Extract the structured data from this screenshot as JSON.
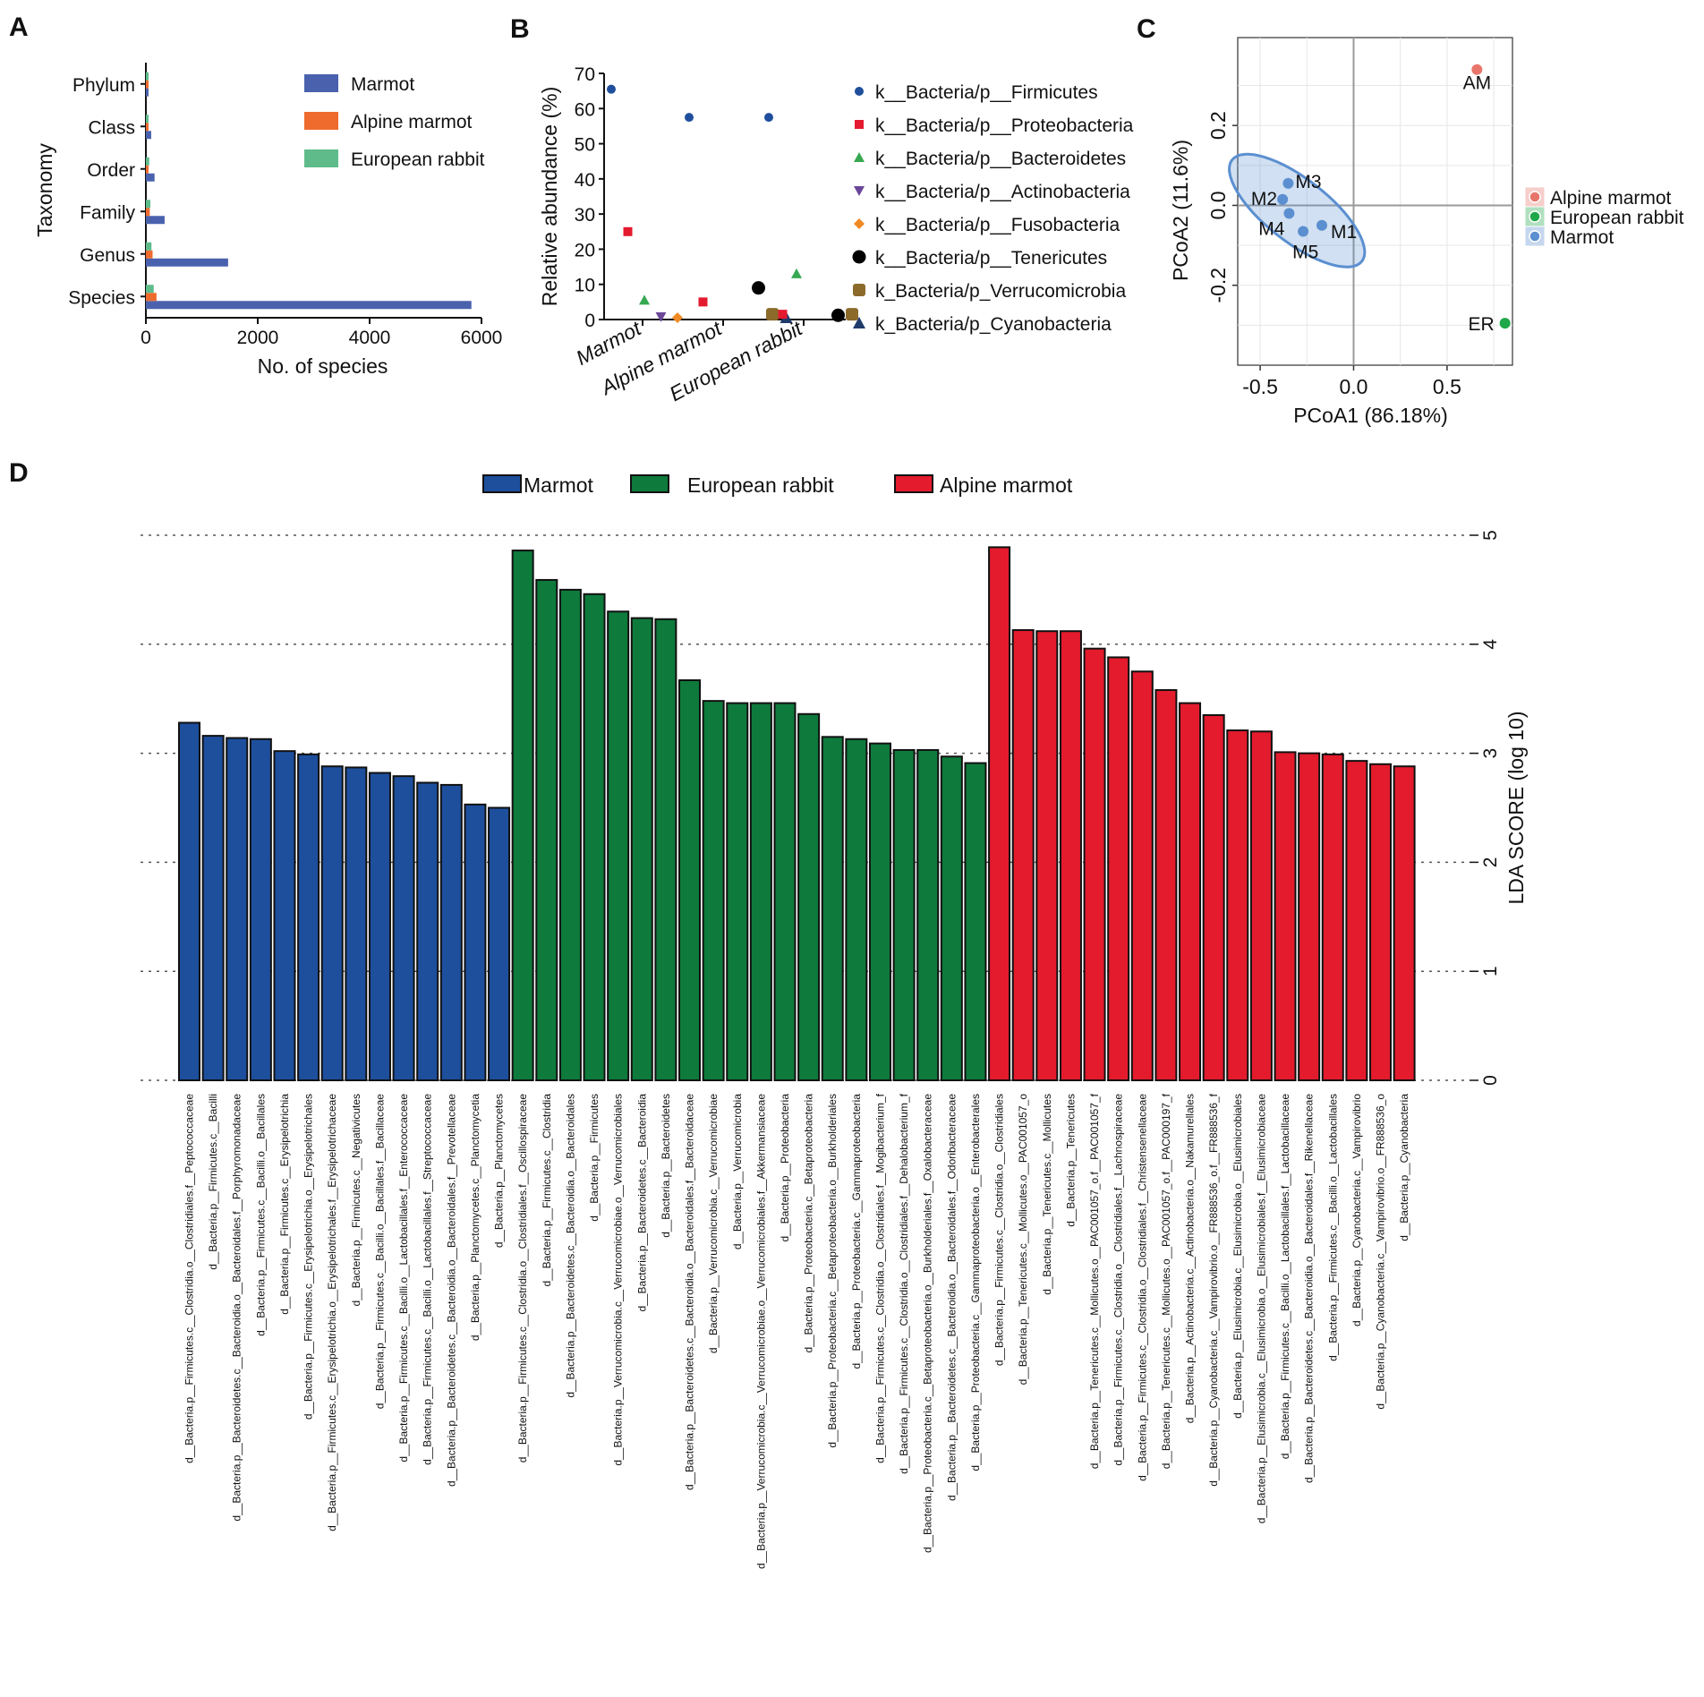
{
  "panel_labels": [
    "A",
    "B",
    "C",
    "D"
  ],
  "chart_data": [
    {
      "panel": "A",
      "type": "bar",
      "orientation": "horizontal",
      "categories": [
        "Phylum",
        "Class",
        "Order",
        "Family",
        "Genus",
        "Species"
      ],
      "series": [
        {
          "name": "Marmot",
          "color": "#4a62ae",
          "values": [
            28,
            95,
            155,
            335,
            1470,
            5820
          ]
        },
        {
          "name": "Alpine marmot",
          "color": "#ee6b2d",
          "values": [
            12,
            25,
            40,
            70,
            120,
            190
          ]
        },
        {
          "name": "European rabbit",
          "color": "#5fbb8a",
          "values": [
            15,
            40,
            60,
            80,
            100,
            140
          ]
        }
      ],
      "xlabel": "No. of species",
      "ylabel": "Taxonomy",
      "xlim": [
        0,
        6000
      ],
      "xticks": [
        "0",
        "2000",
        "4000",
        "6000"
      ],
      "legend": "top-right"
    },
    {
      "panel": "B",
      "type": "scatter",
      "groups": [
        "Marmot",
        "Alpine marmot",
        "European rabbit"
      ],
      "ylabel": "Relative abundance (%)",
      "ylim": [
        0,
        70
      ],
      "yticks": [
        "0",
        "10",
        "20",
        "30",
        "40",
        "50",
        "60",
        "70"
      ],
      "series": [
        {
          "name": "k__Bacteria/p__Firmicutes",
          "marker": "circle-small",
          "color": "#1f4f9c",
          "values": [
            65.5,
            57.5,
            57.5
          ]
        },
        {
          "name": "k__Bacteria/p__Proteobacteria",
          "marker": "square",
          "color": "#e41a2f",
          "values": [
            25,
            5,
            1.5
          ]
        },
        {
          "name": "k__Bacteria/p__Bacteroidetes",
          "marker": "triangle",
          "color": "#36a852",
          "values": [
            5.5,
            null,
            13
          ]
        },
        {
          "name": "k__Bacteria/p__Actinobacteria",
          "marker": "triangle-down",
          "color": "#6a4799",
          "values": [
            0.8,
            null,
            null
          ]
        },
        {
          "name": "k__Bacteria/p__Fusobacteria",
          "marker": "diamond",
          "color": "#f08a24",
          "values": [
            0.5,
            null,
            null
          ]
        },
        {
          "name": "k__Bacteria/p__Tenericutes",
          "marker": "circle",
          "color": "#000000",
          "values": [
            null,
            9,
            1.2
          ]
        },
        {
          "name": "k_Bacteria/p_Verrucomicrobia",
          "marker": "rounded-square",
          "color": "#8b6a2b",
          "values": [
            null,
            1.5,
            1.5
          ]
        },
        {
          "name": "k_Bacteria/p_Cyanobacteria",
          "marker": "triangle-dark",
          "color": "#1f3b6b",
          "values": [
            null,
            0.5,
            null
          ]
        }
      ],
      "legend": "right"
    },
    {
      "panel": "C",
      "type": "scatter",
      "xlabel": "PCoA1 (86.18%)",
      "ylabel": "PCoA2 (11.6%)",
      "xlim": [
        -0.62,
        0.85
      ],
      "ylim": [
        -0.4,
        0.42
      ],
      "xticks": [
        "-0.5",
        "0.0",
        "0.5"
      ],
      "yticks": [
        "-0.2",
        "0.0",
        "0.2"
      ],
      "points": [
        {
          "label": "AM",
          "group": "Alpine marmot",
          "x": 0.66,
          "y": 0.34
        },
        {
          "label": "ER",
          "group": "European rabbit",
          "x": 0.81,
          "y": -0.295
        },
        {
          "label": "M1",
          "group": "Marmot",
          "x": -0.17,
          "y": -0.05
        },
        {
          "label": "M2",
          "group": "Marmot",
          "x": -0.38,
          "y": 0.015
        },
        {
          "label": "M3",
          "group": "Marmot",
          "x": -0.35,
          "y": 0.055
        },
        {
          "label": "M4",
          "group": "Marmot",
          "x": -0.345,
          "y": -0.02
        },
        {
          "label": "M5",
          "group": "Marmot",
          "x": -0.27,
          "y": -0.065
        }
      ],
      "groups": [
        {
          "name": "Alpine marmot",
          "color": "#e8756a"
        },
        {
          "name": "European rabbit",
          "color": "#1fa84a"
        },
        {
          "name": "Marmot",
          "color": "#5b8fd0"
        }
      ],
      "legend": "right"
    },
    {
      "panel": "D",
      "type": "bar",
      "orientation": "vertical",
      "title": "",
      "ylabel": "LDA SCORE (log 10)",
      "ylim": [
        0,
        5
      ],
      "yticks": [
        "0",
        "1",
        "2",
        "3",
        "4",
        "5"
      ],
      "legend_entries": [
        {
          "name": "Marmot",
          "color": "#1d4f9d"
        },
        {
          "name": "European rabbit",
          "color": "#0e7a3c"
        },
        {
          "name": "Alpine marmot",
          "color": "#e31b2c"
        }
      ],
      "legend": "top-center",
      "bars": [
        {
          "label": "d__Bacteria.p__Firmicutes.c__Clostridia.o__Clostridiales.f__Peptococcaceae",
          "group": "Marmot",
          "value": 3.28
        },
        {
          "label": "d__Bacteria.p__Firmicutes.c__Bacilli",
          "group": "Marmot",
          "value": 3.16
        },
        {
          "label": "d__Bacteria.p__Bacteroidetes.c__Bacteroidia.o__Bacteroidales.f__Porphyromonadaceae",
          "group": "Marmot",
          "value": 3.14
        },
        {
          "label": "d__Bacteria.p__Firmicutes.c__Bacilli.o__Bacillales",
          "group": "Marmot",
          "value": 3.13
        },
        {
          "label": "d__Bacteria.p__Firmicutes.c__Erysipelotrichia",
          "group": "Marmot",
          "value": 3.02
        },
        {
          "label": "d__Bacteria.p__Firmicutes.c__Erysipelotrichia.o__Erysipelotrichales",
          "group": "Marmot",
          "value": 2.99
        },
        {
          "label": "d__Bacteria.p__Firmicutes.c__Erysipelotrichia.o__Erysipelotrichales.f__Erysipelotrichaceae",
          "group": "Marmot",
          "value": 2.88
        },
        {
          "label": "d__Bacteria.p__Firmicutes.c__Negativicutes",
          "group": "Marmot",
          "value": 2.87
        },
        {
          "label": "d__Bacteria.p__Firmicutes.c__Bacilli.o__Bacillales.f__Bacillaceae",
          "group": "Marmot",
          "value": 2.82
        },
        {
          "label": "d__Bacteria.p__Firmicutes.c__Bacilli.o__Lactobacillales.f__Enterococcaceae",
          "group": "Marmot",
          "value": 2.79
        },
        {
          "label": "d__Bacteria.p__Firmicutes.c__Bacilli.o__Lactobacillales.f__Streptococcaceae",
          "group": "Marmot",
          "value": 2.73
        },
        {
          "label": "d__Bacteria.p__Bacteroidetes.c__Bacteroidia.o__Bacteroidales.f__Prevotellaceae",
          "group": "Marmot",
          "value": 2.71
        },
        {
          "label": "d__Bacteria.p__Planctomycetes.c__Planctomycetia",
          "group": "Marmot",
          "value": 2.53
        },
        {
          "label": "d__Bacteria.p__Planctomycetes",
          "group": "Marmot",
          "value": 2.5
        },
        {
          "label": "d__Bacteria.p__Firmicutes.c__Clostridia.o__Clostridiales.f__Oscillospiraceae",
          "group": "European rabbit",
          "value": 4.86
        },
        {
          "label": "d__Bacteria.p__Firmicutes.c__Clostridia",
          "group": "European rabbit",
          "value": 4.59
        },
        {
          "label": "d__Bacteria.p__Bacteroidetes.c__Bacteroidia.o__Bacteroidales",
          "group": "European rabbit",
          "value": 4.5
        },
        {
          "label": "d__Bacteria.p__Firmicutes",
          "group": "European rabbit",
          "value": 4.46
        },
        {
          "label": "d__Bacteria.p__Verrucomicrobia.c__Verrucomicrobiae.o__Verrucomicrobiales",
          "group": "European rabbit",
          "value": 4.3
        },
        {
          "label": "d__Bacteria.p__Bacteroidetes.c__Bacteroidia",
          "group": "European rabbit",
          "value": 4.24
        },
        {
          "label": "d__Bacteria.p__Bacteroidetes",
          "group": "European rabbit",
          "value": 4.23
        },
        {
          "label": "d__Bacteria.p__Bacteroidetes.c__Bacteroidia.o__Bacteroidales.f__Bacteroidaceae",
          "group": "European rabbit",
          "value": 3.67
        },
        {
          "label": "d__Bacteria.p__Verrucomicrobia.c__Verrucomicrobiae",
          "group": "European rabbit",
          "value": 3.48
        },
        {
          "label": "d__Bacteria.p__Verrucomicrobia",
          "group": "European rabbit",
          "value": 3.46
        },
        {
          "label": "d__Bacteria.p__Verrucomicrobia.c__Verrucomicrobiae.o__Verrucomicrobiales.f__Akkermansiaceae",
          "group": "European rabbit",
          "value": 3.46
        },
        {
          "label": "d__Bacteria.p__Proteobacteria",
          "group": "European rabbit",
          "value": 3.46
        },
        {
          "label": "d__Bacteria.p__Proteobacteria.c__Betaproteobacteria",
          "group": "European rabbit",
          "value": 3.36
        },
        {
          "label": "d__Bacteria.p__Proteobacteria.c__Betaproteobacteria.o__Burkholderiales",
          "group": "European rabbit",
          "value": 3.15
        },
        {
          "label": "d__Bacteria.p__Proteobacteria.c__Gammaproteobacteria",
          "group": "European rabbit",
          "value": 3.13
        },
        {
          "label": "d__Bacteria.p__Firmicutes.c__Clostridia.o__Clostridiales.f__Mogibacterium_f",
          "group": "European rabbit",
          "value": 3.09
        },
        {
          "label": "d__Bacteria.p__Firmicutes.c__Clostridia.o__Clostridiales.f__Dehalobacterium_f",
          "group": "European rabbit",
          "value": 3.03
        },
        {
          "label": "d__Bacteria.p__Proteobacteria.c__Betaproteobacteria.o__Burkholderiales.f__Oxalobacteraceae",
          "group": "European rabbit",
          "value": 3.03
        },
        {
          "label": "d__Bacteria.p__Bacteroidetes.c__Bacteroidia.o__Bacteroidales.f__Odoribacteraceae",
          "group": "European rabbit",
          "value": 2.97
        },
        {
          "label": "d__Bacteria.p__Proteobacteria.c__Gammaproteobacteria.o__Enterobacterales",
          "group": "European rabbit",
          "value": 2.91
        },
        {
          "label": "d__Bacteria.p__Firmicutes.c__Clostridia.o__Clostridiales",
          "group": "Alpine marmot",
          "value": 4.89
        },
        {
          "label": "d__Bacteria.p__Tenericutes.c__Mollicutes.o__PAC001057_o",
          "group": "Alpine marmot",
          "value": 4.13
        },
        {
          "label": "d__Bacteria.p__Tenericutes.c__Mollicutes",
          "group": "Alpine marmot",
          "value": 4.12
        },
        {
          "label": "d__Bacteria.p__Tenericutes",
          "group": "Alpine marmot",
          "value": 4.12
        },
        {
          "label": "d__Bacteria.p__Tenericutes.c__Mollicutes.o__PAC001057_o.f__PAC001057_f",
          "group": "Alpine marmot",
          "value": 3.96
        },
        {
          "label": "d__Bacteria.p__Firmicutes.c__Clostridia.o__Clostridiales.f__Lachnospiraceae",
          "group": "Alpine marmot",
          "value": 3.88
        },
        {
          "label": "d__Bacteria.p__Firmicutes.c__Clostridia.o__Clostridiales.f__Christensenellaceae",
          "group": "Alpine marmot",
          "value": 3.75
        },
        {
          "label": "d__Bacteria.p__Tenericutes.c__Mollicutes.o__PAC001057_o.f__PAC000197_f",
          "group": "Alpine marmot",
          "value": 3.58
        },
        {
          "label": "d__Bacteria.p__Actinobacteria.c__Actinobacteria.o__Nakamurellales",
          "group": "Alpine marmot",
          "value": 3.46
        },
        {
          "label": "d__Bacteria.p__Cyanobacteria.c__Vampirovibrio.o__FR888536_o.f__FR888536_f",
          "group": "Alpine marmot",
          "value": 3.35
        },
        {
          "label": "d__Bacteria.p__Elusimicrobia.c__Elusimicrobia.o__Elusimicrobiales",
          "group": "Alpine marmot",
          "value": 3.21
        },
        {
          "label": "d__Bacteria.p__Elusimicrobia.c__Elusimicrobia.o__Elusimicrobiales.f__Elusimicrobiaceae",
          "group": "Alpine marmot",
          "value": 3.2
        },
        {
          "label": "d__Bacteria.p__Firmicutes.c__Bacilli.o__Lactobacillales.f__Lactobacillaceae",
          "group": "Alpine marmot",
          "value": 3.01
        },
        {
          "label": "d__Bacteria.p__Bacteroidetes.c__Bacteroidia.o__Bacteroidales.f__Rikenellaceae",
          "group": "Alpine marmot",
          "value": 3.0
        },
        {
          "label": "d__Bacteria.p__Firmicutes.c__Bacilli.o__Lactobacillales",
          "group": "Alpine marmot",
          "value": 2.99
        },
        {
          "label": "d__Bacteria.p__Cyanobacteria.c__Vampirovibrio",
          "group": "Alpine marmot",
          "value": 2.93
        },
        {
          "label": "d__Bacteria.p__Cyanobacteria.c__Vampirovibrio.o__FR888536_o",
          "group": "Alpine marmot",
          "value": 2.9
        },
        {
          "label": "d__Bacteria.p__Cyanobacteria",
          "group": "Alpine marmot",
          "value": 2.88
        }
      ]
    }
  ]
}
